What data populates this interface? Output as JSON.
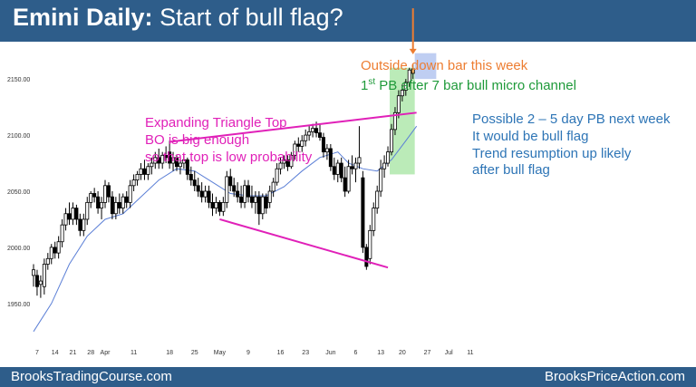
{
  "header": {
    "title_bold": "Emini Daily:",
    "title_rest": "Start of bull flag?"
  },
  "footer": {
    "left": "BrooksTradingCourse.com",
    "right": "BrooksPriceAction.com"
  },
  "annotations": {
    "outside_bar": "Outside down bar this week",
    "micro_channel_pre": "1",
    "micro_channel_sup": "st",
    "micro_channel_post": " PB after 7 bar bull micro channel",
    "triangle_lines": [
      "Expanding Triangle Top",
      "BO is big enough",
      "so that top is low probability"
    ],
    "pullback_lines": [
      "Possible 2 – 5 day PB next week",
      "It would be bull flag",
      "Trend resumption up likely",
      "after bull flag"
    ]
  },
  "colors": {
    "header_bg": "#2e5d8a",
    "triangle_line": "#e020b8",
    "moving_average": "#5b7fd6",
    "bull_body": "#ffffff",
    "bear_body": "#000000",
    "micro_channel_box": "#9ee39a",
    "pullback_box": "#b4c6f0",
    "arrow": "#ed7d31",
    "outside_bar_body": "#f0b060"
  },
  "chart_data": {
    "type": "candlestick",
    "ylim": [
      1920,
      2180
    ],
    "y_ticks": [
      1950,
      2000,
      2050,
      2100,
      2150
    ],
    "y_tick_labels": [
      "1950.00",
      "2000.00",
      "2050.00",
      "2100.00",
      "2150.00"
    ],
    "x_tick_labels": [
      {
        "index": 1,
        "label": "7"
      },
      {
        "index": 6,
        "label": "14"
      },
      {
        "index": 11,
        "label": "21"
      },
      {
        "index": 16,
        "label": "28"
      },
      {
        "index": 20,
        "label": "Apr"
      },
      {
        "index": 28,
        "label": "11"
      },
      {
        "index": 38,
        "label": "18"
      },
      {
        "index": 45,
        "label": "25"
      },
      {
        "index": 52,
        "label": "May"
      },
      {
        "index": 60,
        "label": "9"
      },
      {
        "index": 69,
        "label": "16"
      },
      {
        "index": 76,
        "label": "23"
      },
      {
        "index": 83,
        "label": "Jun"
      },
      {
        "index": 90,
        "label": "6"
      },
      {
        "index": 97,
        "label": "13"
      },
      {
        "index": 103,
        "label": "20"
      },
      {
        "index": 110,
        "label": "27"
      },
      {
        "index": 116,
        "label": "Jul"
      },
      {
        "index": 122,
        "label": "11"
      }
    ],
    "bars": [
      {
        "o": 1975,
        "h": 1985,
        "l": 1965,
        "c": 1980
      },
      {
        "o": 1975,
        "h": 1980,
        "l": 1957,
        "c": 1965
      },
      {
        "o": 1967,
        "h": 1975,
        "l": 1955,
        "c": 1970
      },
      {
        "o": 1965,
        "h": 1990,
        "l": 1958,
        "c": 1985
      },
      {
        "o": 1985,
        "h": 1995,
        "l": 1980,
        "c": 1990
      },
      {
        "o": 1990,
        "h": 2003,
        "l": 1985,
        "c": 2000
      },
      {
        "o": 2000,
        "h": 2005,
        "l": 1990,
        "c": 1995
      },
      {
        "o": 1995,
        "h": 2010,
        "l": 1990,
        "c": 2005
      },
      {
        "o": 2005,
        "h": 2025,
        "l": 2000,
        "c": 2020
      },
      {
        "o": 2020,
        "h": 2035,
        "l": 2015,
        "c": 2030
      },
      {
        "o": 2030,
        "h": 2040,
        "l": 2020,
        "c": 2025
      },
      {
        "o": 2025,
        "h": 2040,
        "l": 2020,
        "c": 2035
      },
      {
        "o": 2035,
        "h": 2038,
        "l": 2020,
        "c": 2025
      },
      {
        "o": 2025,
        "h": 2030,
        "l": 2010,
        "c": 2015
      },
      {
        "o": 2015,
        "h": 2030,
        "l": 2010,
        "c": 2025
      },
      {
        "o": 2025,
        "h": 2045,
        "l": 2020,
        "c": 2040
      },
      {
        "o": 2040,
        "h": 2050,
        "l": 2035,
        "c": 2048
      },
      {
        "o": 2048,
        "h": 2053,
        "l": 2040,
        "c": 2045
      },
      {
        "o": 2045,
        "h": 2050,
        "l": 2030,
        "c": 2035
      },
      {
        "o": 2035,
        "h": 2045,
        "l": 2025,
        "c": 2040
      },
      {
        "o": 2040,
        "h": 2060,
        "l": 2035,
        "c": 2055
      },
      {
        "o": 2055,
        "h": 2058,
        "l": 2040,
        "c": 2045
      },
      {
        "o": 2045,
        "h": 2050,
        "l": 2025,
        "c": 2030
      },
      {
        "o": 2030,
        "h": 2045,
        "l": 2025,
        "c": 2040
      },
      {
        "o": 2040,
        "h": 2048,
        "l": 2030,
        "c": 2035
      },
      {
        "o": 2035,
        "h": 2048,
        "l": 2030,
        "c": 2045
      },
      {
        "o": 2045,
        "h": 2050,
        "l": 2035,
        "c": 2040
      },
      {
        "o": 2040,
        "h": 2060,
        "l": 2035,
        "c": 2055
      },
      {
        "o": 2055,
        "h": 2065,
        "l": 2050,
        "c": 2060
      },
      {
        "o": 2060,
        "h": 2068,
        "l": 2055,
        "c": 2065
      },
      {
        "o": 2065,
        "h": 2075,
        "l": 2060,
        "c": 2070
      },
      {
        "o": 2070,
        "h": 2078,
        "l": 2060,
        "c": 2065
      },
      {
        "o": 2065,
        "h": 2075,
        "l": 2060,
        "c": 2072
      },
      {
        "o": 2072,
        "h": 2080,
        "l": 2065,
        "c": 2075
      },
      {
        "o": 2075,
        "h": 2085,
        "l": 2070,
        "c": 2080
      },
      {
        "o": 2080,
        "h": 2088,
        "l": 2070,
        "c": 2075
      },
      {
        "o": 2075,
        "h": 2085,
        "l": 2070,
        "c": 2082
      },
      {
        "o": 2082,
        "h": 2090,
        "l": 2075,
        "c": 2080
      },
      {
        "o": 2085,
        "h": 2095,
        "l": 2070,
        "c": 2075
      },
      {
        "o": 2075,
        "h": 2085,
        "l": 2068,
        "c": 2080
      },
      {
        "o": 2080,
        "h": 2082,
        "l": 2068,
        "c": 2072
      },
      {
        "o": 2072,
        "h": 2080,
        "l": 2065,
        "c": 2075
      },
      {
        "o": 2075,
        "h": 2082,
        "l": 2070,
        "c": 2078
      },
      {
        "o": 2078,
        "h": 2080,
        "l": 2060,
        "c": 2065
      },
      {
        "o": 2065,
        "h": 2072,
        "l": 2055,
        "c": 2060
      },
      {
        "o": 2060,
        "h": 2068,
        "l": 2050,
        "c": 2055
      },
      {
        "o": 2055,
        "h": 2062,
        "l": 2045,
        "c": 2050
      },
      {
        "o": 2050,
        "h": 2058,
        "l": 2040,
        "c": 2045
      },
      {
        "o": 2045,
        "h": 2055,
        "l": 2040,
        "c": 2050
      },
      {
        "o": 2050,
        "h": 2055,
        "l": 2035,
        "c": 2040
      },
      {
        "o": 2040,
        "h": 2048,
        "l": 2028,
        "c": 2035
      },
      {
        "o": 2035,
        "h": 2045,
        "l": 2030,
        "c": 2040
      },
      {
        "o": 2040,
        "h": 2042,
        "l": 2028,
        "c": 2032
      },
      {
        "o": 2032,
        "h": 2045,
        "l": 2028,
        "c": 2040
      },
      {
        "o": 2040,
        "h": 2068,
        "l": 2035,
        "c": 2063
      },
      {
        "o": 2063,
        "h": 2070,
        "l": 2050,
        "c": 2055
      },
      {
        "o": 2055,
        "h": 2062,
        "l": 2045,
        "c": 2050
      },
      {
        "o": 2050,
        "h": 2058,
        "l": 2040,
        "c": 2045
      },
      {
        "o": 2045,
        "h": 2055,
        "l": 2035,
        "c": 2040
      },
      {
        "o": 2040,
        "h": 2060,
        "l": 2035,
        "c": 2055
      },
      {
        "o": 2055,
        "h": 2060,
        "l": 2040,
        "c": 2045
      },
      {
        "o": 2045,
        "h": 2055,
        "l": 2035,
        "c": 2040
      },
      {
        "o": 2040,
        "h": 2050,
        "l": 2030,
        "c": 2045
      },
      {
        "o": 2045,
        "h": 2050,
        "l": 2020,
        "c": 2030
      },
      {
        "o": 2030,
        "h": 2048,
        "l": 2025,
        "c": 2045
      },
      {
        "o": 2045,
        "h": 2048,
        "l": 2030,
        "c": 2035
      },
      {
        "o": 2040,
        "h": 2055,
        "l": 2035,
        "c": 2050
      },
      {
        "o": 2050,
        "h": 2062,
        "l": 2045,
        "c": 2058
      },
      {
        "o": 2058,
        "h": 2075,
        "l": 2055,
        "c": 2070
      },
      {
        "o": 2070,
        "h": 2080,
        "l": 2065,
        "c": 2075
      },
      {
        "o": 2075,
        "h": 2082,
        "l": 2070,
        "c": 2078
      },
      {
        "o": 2078,
        "h": 2082,
        "l": 2068,
        "c": 2072
      },
      {
        "o": 2072,
        "h": 2085,
        "l": 2070,
        "c": 2082
      },
      {
        "o": 2082,
        "h": 2095,
        "l": 2078,
        "c": 2092
      },
      {
        "o": 2092,
        "h": 2098,
        "l": 2085,
        "c": 2090
      },
      {
        "o": 2090,
        "h": 2100,
        "l": 2085,
        "c": 2095
      },
      {
        "o": 2095,
        "h": 2105,
        "l": 2090,
        "c": 2100
      },
      {
        "o": 2100,
        "h": 2108,
        "l": 2095,
        "c": 2103
      },
      {
        "o": 2103,
        "h": 2110,
        "l": 2098,
        "c": 2106
      },
      {
        "o": 2106,
        "h": 2112,
        "l": 2098,
        "c": 2102
      },
      {
        "o": 2102,
        "h": 2110,
        "l": 2095,
        "c": 2098
      },
      {
        "o": 2098,
        "h": 2102,
        "l": 2080,
        "c": 2085
      },
      {
        "o": 2085,
        "h": 2092,
        "l": 2078,
        "c": 2088
      },
      {
        "o": 2088,
        "h": 2092,
        "l": 2068,
        "c": 2072
      },
      {
        "o": 2072,
        "h": 2080,
        "l": 2060,
        "c": 2065
      },
      {
        "o": 2065,
        "h": 2078,
        "l": 2058,
        "c": 2075
      },
      {
        "o": 2075,
        "h": 2080,
        "l": 2058,
        "c": 2062
      },
      {
        "o": 2062,
        "h": 2072,
        "l": 2045,
        "c": 2050
      },
      {
        "o": 2050,
        "h": 2078,
        "l": 2048,
        "c": 2072
      },
      {
        "o": 2072,
        "h": 2082,
        "l": 2065,
        "c": 2070
      },
      {
        "o": 2070,
        "h": 2080,
        "l": 2058,
        "c": 2075
      },
      {
        "o": 2075,
        "h": 2108,
        "l": 2070,
        "c": 2080
      },
      {
        "o": 2062,
        "h": 2068,
        "l": 1995,
        "c": 2000
      },
      {
        "o": 2000,
        "h": 2003,
        "l": 1980,
        "c": 1983
      },
      {
        "o": 1990,
        "h": 2020,
        "l": 1985,
        "c": 2015
      },
      {
        "o": 2015,
        "h": 2040,
        "l": 2010,
        "c": 2035
      },
      {
        "o": 2035,
        "h": 2055,
        "l": 2030,
        "c": 2050
      },
      {
        "o": 2050,
        "h": 2078,
        "l": 2045,
        "c": 2070
      },
      {
        "o": 2070,
        "h": 2082,
        "l": 2062,
        "c": 2075
      },
      {
        "o": 2075,
        "h": 2090,
        "l": 2072,
        "c": 2085
      },
      {
        "o": 2085,
        "h": 2110,
        "l": 2082,
        "c": 2105
      },
      {
        "o": 2105,
        "h": 2125,
        "l": 2100,
        "c": 2120
      },
      {
        "o": 2120,
        "h": 2140,
        "l": 2115,
        "c": 2135
      },
      {
        "o": 2135,
        "h": 2145,
        "l": 2130,
        "c": 2140
      },
      {
        "o": 2140,
        "h": 2150,
        "l": 2135,
        "c": 2147
      },
      {
        "o": 2147,
        "h": 2160,
        "l": 2143,
        "c": 2158
      },
      {
        "o": 2159,
        "h": 2163,
        "l": 2150,
        "c": 2155
      }
    ],
    "moving_average": [
      [
        0,
        1925
      ],
      [
        5,
        1950
      ],
      [
        10,
        1985
      ],
      [
        15,
        2010
      ],
      [
        20,
        2025
      ],
      [
        25,
        2030
      ],
      [
        30,
        2045
      ],
      [
        35,
        2060
      ],
      [
        40,
        2070
      ],
      [
        45,
        2068
      ],
      [
        50,
        2058
      ],
      [
        55,
        2048
      ],
      [
        60,
        2046
      ],
      [
        65,
        2046
      ],
      [
        70,
        2054
      ],
      [
        75,
        2068
      ],
      [
        80,
        2080
      ],
      [
        85,
        2085
      ],
      [
        88,
        2075
      ],
      [
        92,
        2070
      ],
      [
        96,
        2068
      ],
      [
        100,
        2078
      ],
      [
        104,
        2095
      ],
      [
        107,
        2108
      ]
    ],
    "triangle_upper": [
      [
        38,
        2094
      ],
      [
        107,
        2120
      ]
    ],
    "triangle_lower": [
      [
        52,
        2025
      ],
      [
        99,
        1982
      ]
    ],
    "micro_channel_box": {
      "x0": 99.5,
      "x1": 106.5,
      "y0": 2065,
      "y1": 2160
    },
    "pullback_box": {
      "x0": 106.5,
      "x1": 112.5,
      "y0": 2150,
      "y1": 2173
    },
    "arrow": {
      "x": 106,
      "y_from": 2213,
      "y_to": 2172
    }
  }
}
